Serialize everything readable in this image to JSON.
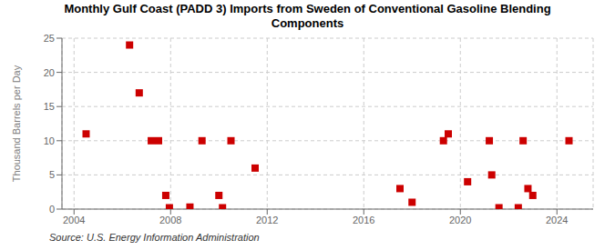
{
  "chart_data": {
    "type": "scatter",
    "title": "Monthly Gulf Coast (PADD 3) Imports from Sweden of Conventional Gasoline Blending\nComponents",
    "y_label": "Thousand Barrels per Day",
    "source": "Source: U.S. Energy Information Administration",
    "color": "#cc0000",
    "marker": "square",
    "grid": true,
    "xlim": [
      2003.5,
      2025.5
    ],
    "ylim": [
      0,
      25
    ],
    "xticks": [
      2004,
      2008,
      2012,
      2016,
      2020,
      2024
    ],
    "yticks": [
      0,
      5,
      10,
      15,
      20,
      25
    ],
    "x": [
      2004.5,
      2006.3,
      2006.7,
      2007.2,
      2007.5,
      2007.8,
      2007.95,
      2008.8,
      2009.3,
      2010.0,
      2010.15,
      2010.5,
      2011.5,
      2017.5,
      2018.0,
      2019.3,
      2019.5,
      2020.3,
      2021.2,
      2021.3,
      2021.6,
      2022.4,
      2022.6,
      2022.8,
      2023.0,
      2024.5
    ],
    "values": [
      11,
      24,
      17,
      10,
      10,
      2,
      0.2,
      0.3,
      10,
      2,
      0.2,
      10,
      6,
      3,
      1,
      10,
      11,
      4,
      10,
      5,
      0.2,
      0.2,
      10,
      3,
      2,
      10
    ]
  }
}
